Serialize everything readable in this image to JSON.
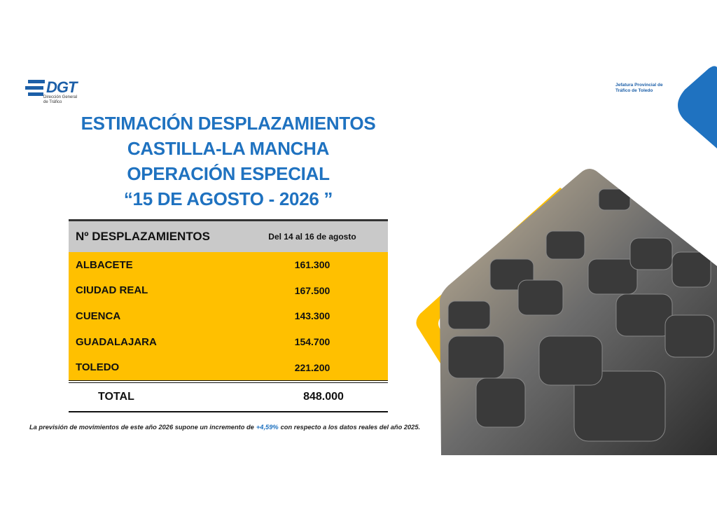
{
  "header": {
    "logo": "DGT",
    "logo_subtitle": [
      "Dirección General",
      "de Tráfico"
    ],
    "office": [
      "Jefatura Provincial de",
      "Tráfico de Toledo"
    ]
  },
  "title": [
    "ESTIMACIÓN DESPLAZAMIENTOS",
    "CASTILLA-LA MANCHA",
    "OPERACIÓN ESPECIAL",
    "“15 DE AGOSTO - 2026 ”"
  ],
  "table": {
    "columns": [
      "Nº DESPLAZAMIENTOS",
      "Del 14 al 16 de agosto"
    ],
    "rows": [
      [
        "ALBACETE",
        "161.300"
      ],
      [
        "CIUDAD REAL",
        "167.500"
      ],
      [
        "CUENCA",
        "143.300"
      ],
      [
        "GUADALAJARA",
        "154.700"
      ],
      [
        "TOLEDO",
        "221.200"
      ]
    ],
    "total": [
      "TOTAL",
      "848.000"
    ]
  },
  "note": {
    "before": "La previsión de movimientos de este año 2026 supone un incremento de",
    "highlight": "+4,59%",
    "after": "con respecto a los datos reales del año 2025."
  }
}
